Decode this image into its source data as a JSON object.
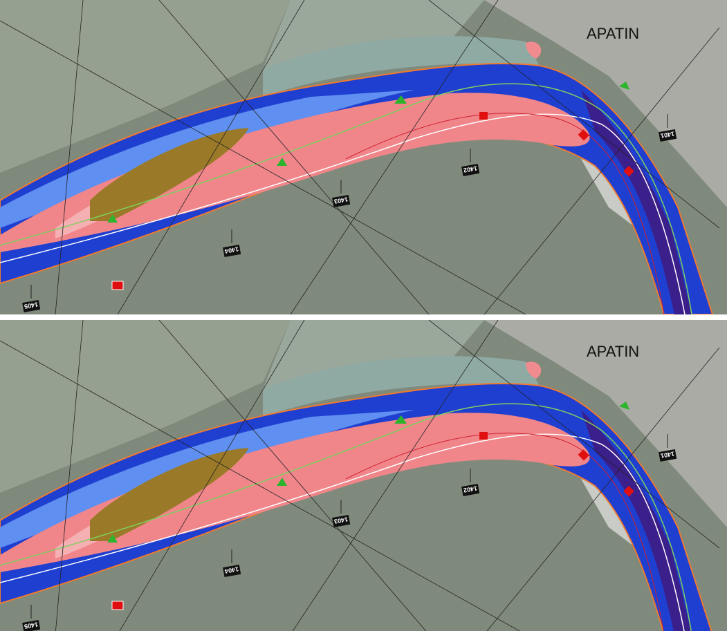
{
  "panels": [
    {
      "place_label": "APATIN",
      "km_markers": [
        "1405",
        "1404",
        "1403",
        "1402",
        "1401"
      ]
    },
    {
      "place_label": "APATIN",
      "km_markers": [
        "1405",
        "1404",
        "1403",
        "1402",
        "1401"
      ]
    }
  ]
}
